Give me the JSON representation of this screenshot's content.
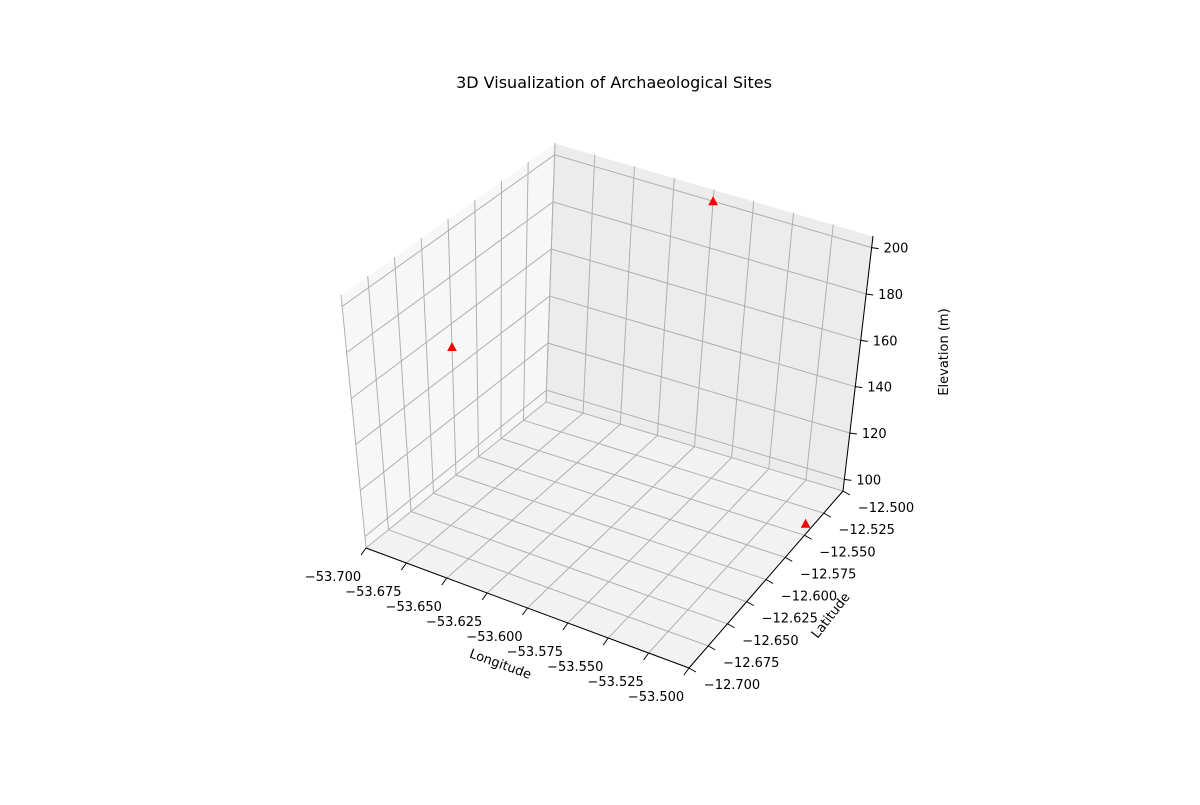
{
  "chart_data": {
    "type": "scatter3d",
    "title": "3D Visualization of Archaeological Sites",
    "xlabel": "Longitude",
    "ylabel": "Latitude",
    "zlabel": "Elevation (m)",
    "xlim": [
      -53.7,
      -53.5
    ],
    "ylim": [
      -12.7,
      -12.5
    ],
    "zlim": [
      95,
      205
    ],
    "x_ticks": [
      "−53.700",
      "−53.675",
      "−53.650",
      "−53.625",
      "−53.600",
      "−53.575",
      "−53.550",
      "−53.525",
      "−53.500"
    ],
    "y_ticks": [
      "−12.700",
      "−12.675",
      "−12.650",
      "−12.625",
      "−12.600",
      "−12.575",
      "−12.550",
      "−12.525",
      "−12.500"
    ],
    "z_ticks": [
      "100",
      "120",
      "140",
      "160",
      "180",
      "200"
    ],
    "grid": true,
    "marker": "triangle",
    "marker_color": "#ff0000",
    "points": [
      {
        "x": -53.7,
        "y": -12.6,
        "z": 150
      },
      {
        "x": -53.6,
        "y": -12.5,
        "z": 200
      },
      {
        "x": -53.5,
        "y": -12.55,
        "z": 100
      }
    ]
  }
}
